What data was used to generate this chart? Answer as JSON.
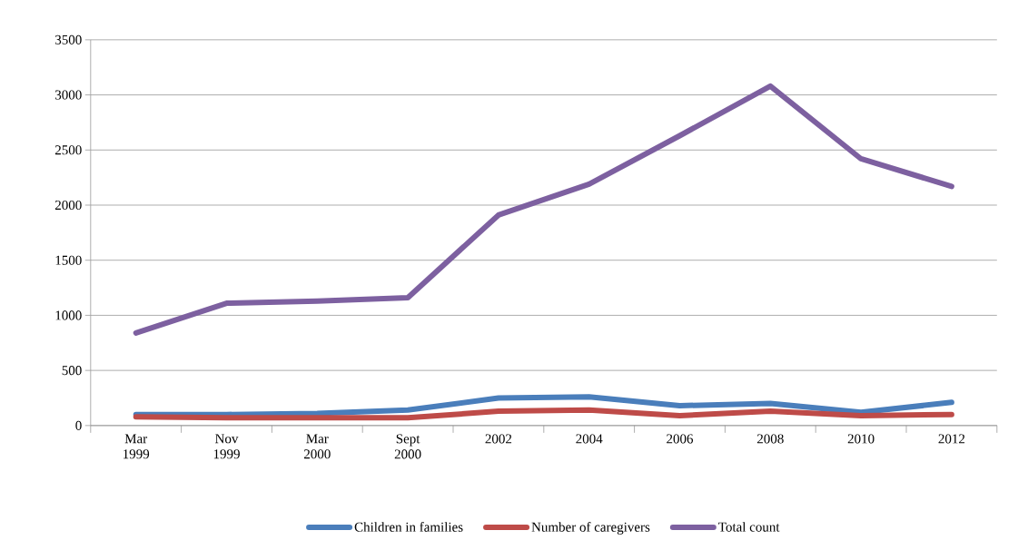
{
  "chart_data": {
    "type": "line",
    "categories": [
      "Mar 1999",
      "Nov 1999",
      "Mar 2000",
      "Sept 2000",
      "2002",
      "2004",
      "2006",
      "2008",
      "2010",
      "2012"
    ],
    "series": [
      {
        "name": "Children in families",
        "color": "#4a7ebb",
        "values": [
          100,
          100,
          110,
          140,
          250,
          260,
          180,
          200,
          120,
          210
        ]
      },
      {
        "name": "Number of caregivers",
        "color": "#be4b48",
        "values": [
          80,
          70,
          70,
          70,
          130,
          140,
          90,
          130,
          90,
          100
        ]
      },
      {
        "name": "Total count",
        "color": "#7d60a0",
        "values": [
          840,
          1110,
          1130,
          1160,
          1910,
          2190,
          2630,
          3080,
          2420,
          2170
        ]
      }
    ],
    "ylim": [
      0,
      3500
    ],
    "yticks": [
      0,
      500,
      1000,
      1500,
      2000,
      2500,
      3000,
      3500
    ],
    "grid": "y",
    "legend": "bottom",
    "line_style": "solid"
  }
}
